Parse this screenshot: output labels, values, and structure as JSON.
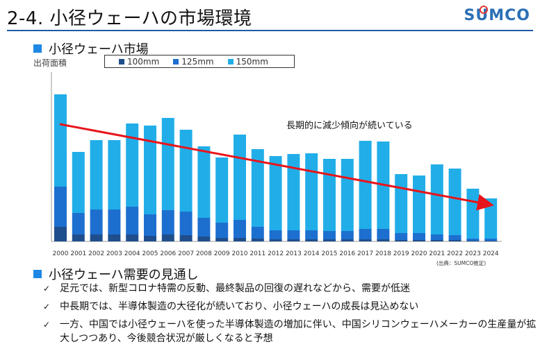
{
  "header": {
    "title": "2-4. 小径ウェーハの市場環境",
    "logo": "SUMCO"
  },
  "section1": {
    "title": "小径ウェーハ市場"
  },
  "section2": {
    "title": "小径ウェーハ需要の見通し"
  },
  "annotation": "長期的に減少傾向が続いている",
  "source": "(出典：SUMCO推定)",
  "colors": {
    "s100": "#1f4e8c",
    "s125": "#1d6fcf",
    "s150": "#21aee8",
    "trend": "#e8141b",
    "accent": "#1f5aa6"
  },
  "bullets": [
    "足元では、新型コロナ特需の反動、最終製品の回復の遅れなどから、需要が低迷",
    "中長期では、半導体製造の大径化が続いており、小径ウェーハの成長は見込めない",
    "一方、中国では小径ウェーハを使った半導体製造の増加に伴い、中国シリコンウェーハメーカーの生産量が拡大しつつあり、今後競合状況が厳しくなると予想"
  ],
  "chart_data": {
    "type": "bar",
    "stacked": true,
    "ylabel": "出荷面積",
    "categories": [
      "2000",
      "2001",
      "2002",
      "2003",
      "2004",
      "2005",
      "2006",
      "2007",
      "2008",
      "2009",
      "2010",
      "2011",
      "2012",
      "2013",
      "2014",
      "2015",
      "2016",
      "2017",
      "2018",
      "2019",
      "2020",
      "2021",
      "2022",
      "2023",
      "2024"
    ],
    "series": [
      {
        "name": "100mm",
        "values": [
          21,
          10,
          10,
          10,
          10,
          8,
          10,
          9,
          7,
          5,
          5,
          4,
          3,
          3,
          3,
          3,
          3,
          3,
          3,
          2,
          2,
          2,
          2,
          1,
          1
        ]
      },
      {
        "name": "125mm",
        "values": [
          58,
          31,
          36,
          36,
          40,
          31,
          35,
          34,
          27,
          22,
          26,
          17,
          13,
          13,
          13,
          12,
          12,
          15,
          15,
          10,
          10,
          8,
          7,
          3,
          3
        ]
      },
      {
        "name": "150mm",
        "values": [
          133,
          88,
          100,
          100,
          120,
          128,
          133,
          118,
          103,
          94,
          123,
          112,
          107,
          110,
          111,
          104,
          104,
          127,
          126,
          85,
          83,
          101,
          96,
          72,
          58
        ]
      }
    ],
    "grid": false,
    "legend_position": "top",
    "trend_arrow": true
  }
}
